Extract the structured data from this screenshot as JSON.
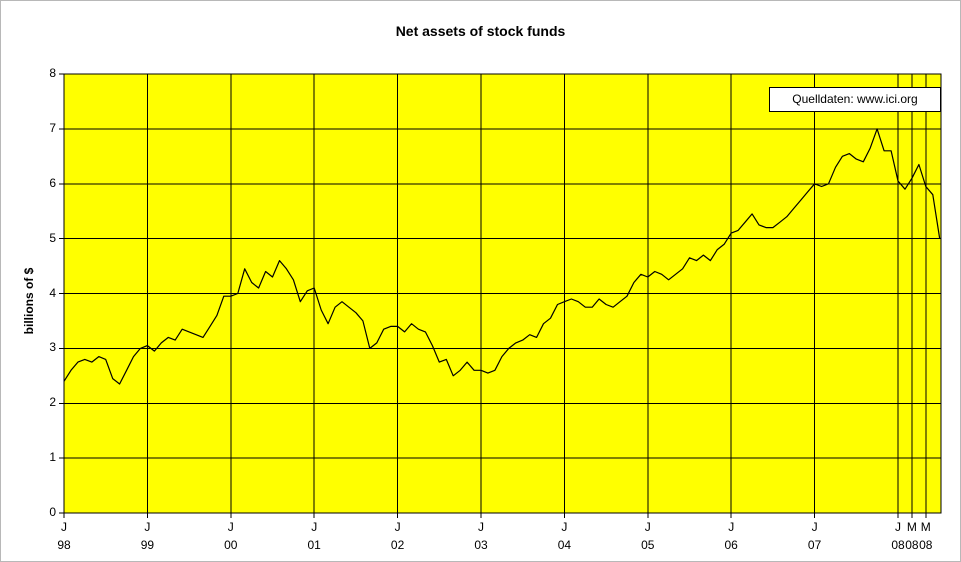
{
  "chart_data": {
    "type": "line",
    "title": "Net assets of stock funds",
    "ylabel": "billions of $",
    "source_note": "Quelldaten: www.ici.org",
    "frequency": "monthly",
    "x_start": "1998-01",
    "x_end": "2008-07",
    "ylim": [
      0,
      8
    ],
    "yticks": [
      0,
      1,
      2,
      3,
      4,
      5,
      6,
      7,
      8
    ],
    "x_tick_month_index": [
      0,
      12,
      24,
      36,
      48,
      60,
      72,
      84,
      96,
      108,
      120,
      122,
      124
    ],
    "x_tick_labels_top": [
      "J",
      "J",
      "J",
      "J",
      "J",
      "J",
      "J",
      "J",
      "J",
      "J",
      "J",
      "M",
      "M"
    ],
    "x_tick_labels_bottom": [
      "98",
      "99",
      "00",
      "01",
      "02",
      "03",
      "04",
      "05",
      "06",
      "07",
      "08",
      "08",
      "08"
    ],
    "grid": true,
    "legend_position": "top-right",
    "colors": {
      "plot_bg": "#ffff00",
      "grid": "#000000",
      "line": "#000000",
      "text": "#000000",
      "legend_bg": "#ffffff"
    },
    "series": [
      {
        "name": "Net assets of stock funds",
        "values": [
          2.4,
          2.6,
          2.75,
          2.8,
          2.75,
          2.85,
          2.8,
          2.45,
          2.35,
          2.6,
          2.85,
          3.0,
          3.05,
          2.95,
          3.1,
          3.2,
          3.15,
          3.35,
          3.3,
          3.25,
          3.2,
          3.4,
          3.6,
          3.95,
          3.95,
          4.0,
          4.45,
          4.2,
          4.1,
          4.4,
          4.3,
          4.6,
          4.45,
          4.25,
          3.85,
          4.05,
          4.1,
          3.7,
          3.45,
          3.75,
          3.85,
          3.75,
          3.65,
          3.5,
          3.0,
          3.1,
          3.35,
          3.4,
          3.4,
          3.3,
          3.45,
          3.35,
          3.3,
          3.05,
          2.75,
          2.8,
          2.5,
          2.6,
          2.75,
          2.6,
          2.6,
          2.55,
          2.6,
          2.85,
          3.0,
          3.1,
          3.15,
          3.25,
          3.2,
          3.45,
          3.55,
          3.8,
          3.85,
          3.9,
          3.85,
          3.75,
          3.75,
          3.9,
          3.8,
          3.75,
          3.85,
          3.95,
          4.2,
          4.35,
          4.3,
          4.4,
          4.35,
          4.25,
          4.35,
          4.45,
          4.65,
          4.6,
          4.7,
          4.6,
          4.8,
          4.9,
          5.1,
          5.15,
          5.3,
          5.45,
          5.25,
          5.2,
          5.2,
          5.3,
          5.4,
          5.55,
          5.7,
          5.85,
          6.0,
          5.95,
          6.0,
          6.3,
          6.5,
          6.55,
          6.45,
          6.4,
          6.65,
          7.0,
          6.6,
          6.6,
          6.05,
          5.9,
          6.1,
          6.35,
          5.95,
          5.8,
          5.0
        ]
      }
    ]
  }
}
